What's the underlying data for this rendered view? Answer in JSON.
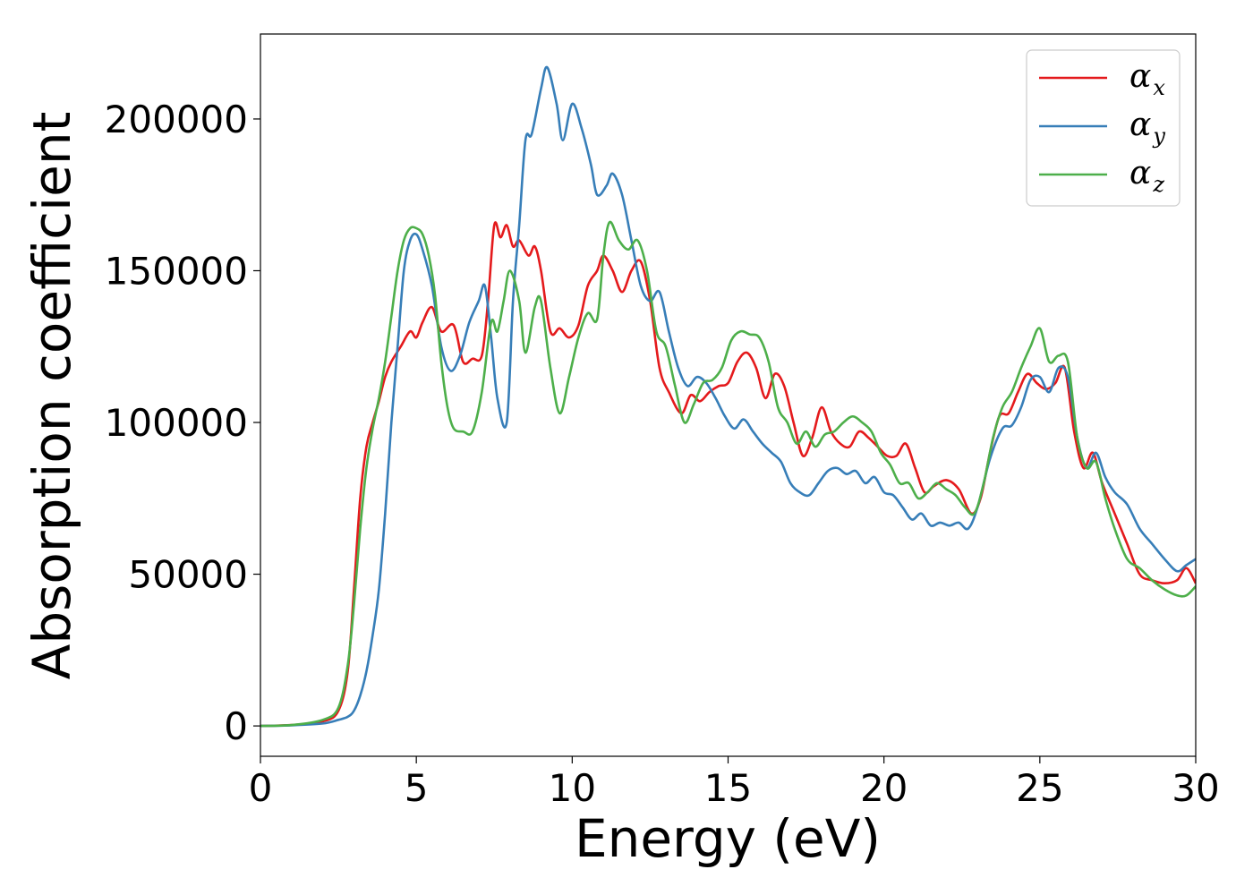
{
  "chart_data": {
    "type": "line",
    "title": "",
    "xlabel": "Energy (eV)",
    "ylabel": "Absorption coefficient",
    "xlim": [
      0,
      30
    ],
    "ylim": [
      -10000,
      228000
    ],
    "xticks": [
      0,
      5,
      10,
      15,
      20,
      25,
      30
    ],
    "yticks": [
      0,
      50000,
      100000,
      150000,
      200000
    ],
    "grid": false,
    "legend_position": "top-right",
    "series": [
      {
        "name": "α_x",
        "label_main": "α",
        "label_sub": "x",
        "color": "#e41a1c",
        "x": [
          0,
          1,
          2,
          2.5,
          2.8,
          3.0,
          3.2,
          3.4,
          3.6,
          3.8,
          4.0,
          4.2,
          4.5,
          4.8,
          5.0,
          5.2,
          5.5,
          5.8,
          6.2,
          6.5,
          6.8,
          7.1,
          7.3,
          7.5,
          7.7,
          7.9,
          8.1,
          8.3,
          8.6,
          8.8,
          9.0,
          9.3,
          9.6,
          9.9,
          10.2,
          10.5,
          10.8,
          11.0,
          11.3,
          11.6,
          11.9,
          12.2,
          12.5,
          12.8,
          13.1,
          13.5,
          13.8,
          14.1,
          14.4,
          14.7,
          15.0,
          15.3,
          15.6,
          15.9,
          16.2,
          16.5,
          16.8,
          17.1,
          17.4,
          17.7,
          18.0,
          18.3,
          18.6,
          18.9,
          19.2,
          19.5,
          19.8,
          20.1,
          20.4,
          20.7,
          21.0,
          21.3,
          21.6,
          22.0,
          22.4,
          22.8,
          23.1,
          23.4,
          23.7,
          24.0,
          24.3,
          24.6,
          24.9,
          25.2,
          25.5,
          25.8,
          26.1,
          26.4,
          26.7,
          27.0,
          27.4,
          27.8,
          28.2,
          28.6,
          29.0,
          29.4,
          29.7,
          30.0
        ],
        "y": [
          0,
          300,
          1500,
          5000,
          18000,
          45000,
          75000,
          92000,
          100000,
          107000,
          115000,
          120000,
          125000,
          130000,
          128000,
          133000,
          138000,
          130000,
          132000,
          120000,
          121000,
          122000,
          140000,
          165000,
          161000,
          165000,
          158000,
          160000,
          155000,
          158000,
          150000,
          130000,
          131000,
          128000,
          132000,
          145000,
          150000,
          155000,
          150000,
          143000,
          150000,
          153000,
          140000,
          118000,
          110000,
          103000,
          109000,
          107000,
          110000,
          112000,
          113000,
          120000,
          123000,
          118000,
          108000,
          116000,
          112000,
          100000,
          89000,
          95000,
          105000,
          97000,
          93000,
          92000,
          97000,
          95000,
          92000,
          89000,
          89000,
          93000,
          85000,
          77000,
          79000,
          81000,
          78000,
          70000,
          75000,
          90000,
          102000,
          103000,
          110000,
          116000,
          113000,
          111000,
          113000,
          118000,
          97000,
          85000,
          90000,
          80000,
          70000,
          60000,
          50000,
          48000,
          47000,
          48000,
          52000,
          47000
        ]
      },
      {
        "name": "α_y",
        "label_main": "α",
        "label_sub": "y",
        "color": "#377eb8",
        "x": [
          0,
          1,
          2,
          2.5,
          2.8,
          3.0,
          3.2,
          3.4,
          3.6,
          3.8,
          4.0,
          4.2,
          4.4,
          4.6,
          4.8,
          5.0,
          5.2,
          5.5,
          5.8,
          6.1,
          6.4,
          6.7,
          7.0,
          7.2,
          7.4,
          7.6,
          7.9,
          8.1,
          8.3,
          8.5,
          8.7,
          9.0,
          9.2,
          9.5,
          9.7,
          10.0,
          10.3,
          10.6,
          10.8,
          11.1,
          11.3,
          11.6,
          11.9,
          12.2,
          12.5,
          12.8,
          13.1,
          13.4,
          13.7,
          14.0,
          14.3,
          14.6,
          14.9,
          15.2,
          15.5,
          15.8,
          16.1,
          16.4,
          16.7,
          17.0,
          17.3,
          17.6,
          17.9,
          18.2,
          18.5,
          18.8,
          19.1,
          19.4,
          19.7,
          20.0,
          20.3,
          20.6,
          20.9,
          21.2,
          21.5,
          21.8,
          22.1,
          22.4,
          22.7,
          23.0,
          23.4,
          23.8,
          24.1,
          24.4,
          24.7,
          25.0,
          25.3,
          25.6,
          25.9,
          26.2,
          26.5,
          26.8,
          27.1,
          27.4,
          27.8,
          28.2,
          28.6,
          29.0,
          29.4,
          29.7,
          30.0
        ],
        "y": [
          0,
          200,
          800,
          2000,
          3000,
          5000,
          10000,
          18000,
          30000,
          45000,
          70000,
          100000,
          125000,
          150000,
          160000,
          162000,
          157000,
          145000,
          125000,
          117000,
          122000,
          133000,
          140000,
          145000,
          128000,
          108000,
          100000,
          140000,
          165000,
          193000,
          195000,
          210000,
          217000,
          205000,
          193000,
          205000,
          197000,
          185000,
          175000,
          178000,
          182000,
          175000,
          160000,
          145000,
          140000,
          143000,
          130000,
          118000,
          112000,
          115000,
          113000,
          108000,
          102000,
          98000,
          101000,
          97000,
          93000,
          90000,
          87000,
          80000,
          77000,
          76000,
          80000,
          84000,
          85000,
          83000,
          84000,
          80000,
          82000,
          77000,
          76000,
          72000,
          68000,
          70000,
          66000,
          67000,
          66000,
          67000,
          65000,
          72000,
          88000,
          98000,
          99000,
          105000,
          114000,
          115000,
          110000,
          118000,
          115000,
          95000,
          85000,
          90000,
          82000,
          77000,
          73000,
          65000,
          60000,
          55000,
          51000,
          53000,
          55000
        ]
      },
      {
        "name": "α_z",
        "label_main": "α",
        "label_sub": "z",
        "color": "#4daf4a",
        "x": [
          0,
          1,
          2,
          2.5,
          2.8,
          3.0,
          3.2,
          3.4,
          3.6,
          3.8,
          4.0,
          4.2,
          4.4,
          4.6,
          4.8,
          5.0,
          5.2,
          5.4,
          5.6,
          5.8,
          6.0,
          6.2,
          6.5,
          6.8,
          7.1,
          7.4,
          7.6,
          7.8,
          8.0,
          8.3,
          8.5,
          8.8,
          9.0,
          9.3,
          9.6,
          9.9,
          10.2,
          10.5,
          10.8,
          11.0,
          11.2,
          11.5,
          11.8,
          12.1,
          12.4,
          12.7,
          13.0,
          13.3,
          13.6,
          13.9,
          14.2,
          14.5,
          14.8,
          15.1,
          15.4,
          15.7,
          16.0,
          16.3,
          16.6,
          16.9,
          17.2,
          17.5,
          17.8,
          18.1,
          18.4,
          18.7,
          19.0,
          19.3,
          19.6,
          19.9,
          20.2,
          20.5,
          20.8,
          21.1,
          21.4,
          21.7,
          22.0,
          22.3,
          22.6,
          22.9,
          23.2,
          23.5,
          23.8,
          24.1,
          24.4,
          24.7,
          25.0,
          25.3,
          25.6,
          25.9,
          26.2,
          26.5,
          26.8,
          27.1,
          27.4,
          27.8,
          28.2,
          28.6,
          29.0,
          29.4,
          29.7,
          30.0
        ],
        "y": [
          0,
          300,
          2000,
          6000,
          20000,
          40000,
          65000,
          85000,
          98000,
          108000,
          120000,
          135000,
          150000,
          160000,
          164000,
          164000,
          162000,
          155000,
          142000,
          120000,
          105000,
          98000,
          97000,
          97000,
          110000,
          133000,
          130000,
          140000,
          150000,
          140000,
          123000,
          138000,
          140000,
          118000,
          103000,
          115000,
          128000,
          136000,
          134000,
          155000,
          166000,
          160000,
          157000,
          160000,
          150000,
          130000,
          125000,
          112000,
          100000,
          106000,
          113000,
          114000,
          118000,
          127000,
          130000,
          129000,
          128000,
          120000,
          105000,
          100000,
          93000,
          97000,
          92000,
          96000,
          97000,
          100000,
          102000,
          100000,
          97000,
          90000,
          86000,
          80000,
          80000,
          75000,
          77000,
          80000,
          78000,
          76000,
          72000,
          70000,
          80000,
          95000,
          105000,
          110000,
          118000,
          125000,
          131000,
          120000,
          122000,
          120000,
          95000,
          85000,
          87000,
          75000,
          65000,
          55000,
          52000,
          48000,
          45000,
          43000,
          43000,
          46000
        ]
      }
    ]
  }
}
